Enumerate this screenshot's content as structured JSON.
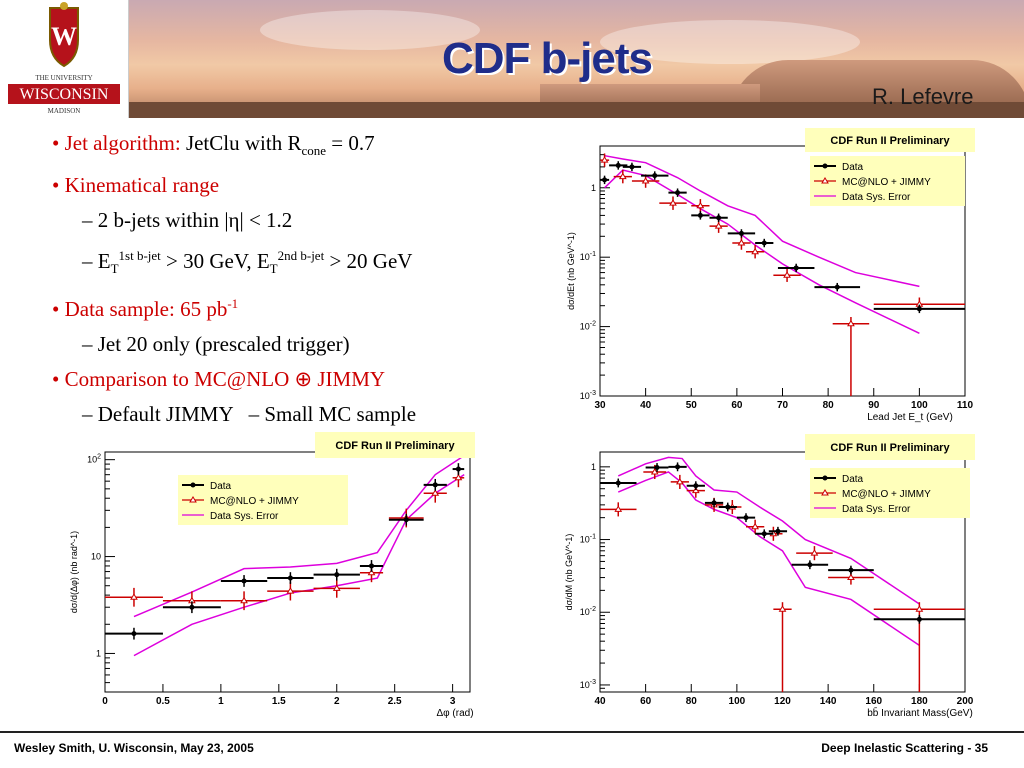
{
  "header": {
    "title": "CDF b-jets",
    "author": "R. Lefevre",
    "logo_text": {
      "line1": "THE UNIVERSITY",
      "line2": "WISCONSIN",
      "line3": "MADISON",
      "shield_letter": "W"
    }
  },
  "bullets": {
    "b1_label": "Jet algorithm:",
    "b1_text": "JetClu with R",
    "b1_sub": "cone",
    "b1_tail": "= 0.7",
    "b2": "Kinematical range",
    "b2a": "2 b-jets within |η| < 1.2",
    "b2b_E": "E",
    "b2b_T": "T",
    "b2b_sup1": "1st b-jet",
    "b2b_mid": " > 30 GeV, E",
    "b2b_sup2": "2nd b-jet",
    "b2b_tail": " > 20 GeV",
    "b3": "Data sample: 65 pb",
    "b3_sup": "-1",
    "b3a": "Jet 20 only (prescaled trigger)",
    "b4": "Comparison to MC@NLO ⊕ JIMMY",
    "b4a": "Default JIMMY",
    "b4b": "Small MC sample",
    "dash": "–",
    "dot": "•"
  },
  "legend": {
    "data": "Data",
    "mc": "MC@NLO + JIMMY",
    "sys": "Data Sys. Error"
  },
  "colors": {
    "data": "#000000",
    "mc": "#cc0000",
    "sys": "#dd00dd",
    "prelim_bg": "#ffffbb",
    "title": "#1f2d8a",
    "bullet_red": "#cc0000"
  },
  "chart_data": [
    {
      "id": "et",
      "type": "scatter",
      "title": "CDF Run II Preliminary",
      "xlabel": "Lead Jet E_t (GeV)",
      "ylabel": "dσ/dEt (nb GeV^-1)",
      "xlim": [
        30,
        110
      ],
      "ylim": [
        0.001,
        4
      ],
      "log_y": true,
      "xticks": [
        "30",
        "40",
        "50",
        "60",
        "70",
        "80",
        "90",
        "100",
        "110"
      ],
      "yticks": [
        {
          "v": 1,
          "label": "1"
        },
        {
          "v": 0.1,
          "label": "10^-1"
        },
        {
          "v": 0.01,
          "label": "10^-2"
        },
        {
          "v": 0.001,
          "label": "10^-3"
        }
      ],
      "data": {
        "x": [
          31,
          34,
          37,
          42,
          47,
          52,
          56,
          61,
          66,
          73,
          82,
          100
        ],
        "y": [
          1.3,
          2.1,
          2.0,
          1.5,
          0.85,
          0.4,
          0.37,
          0.22,
          0.16,
          0.07,
          0.037,
          0.018
        ],
        "xerr": [
          1,
          2,
          2,
          3,
          2,
          2,
          2,
          3,
          2,
          4,
          5,
          10
        ]
      },
      "mc": {
        "x": [
          31,
          35,
          40,
          46,
          52,
          56,
          61,
          64,
          71,
          85,
          100
        ],
        "y": [
          2.5,
          1.45,
          1.25,
          0.6,
          0.55,
          0.28,
          0.16,
          0.12,
          0.055,
          0.011,
          0.021
        ],
        "xerr": [
          1,
          2,
          3,
          3,
          2,
          2,
          2,
          2,
          3,
          4,
          10
        ]
      },
      "sys_upper": {
        "x": [
          31,
          35,
          40,
          47,
          52,
          58,
          64,
          70,
          78,
          86,
          100
        ],
        "y": [
          2.9,
          2.6,
          2.3,
          1.4,
          0.9,
          0.55,
          0.4,
          0.17,
          0.1,
          0.06,
          0.038
        ]
      },
      "sys_lower": {
        "x": [
          31,
          35,
          40,
          47,
          52,
          58,
          64,
          70,
          78,
          86,
          100
        ],
        "y": [
          1.0,
          1.8,
          1.5,
          0.8,
          0.5,
          0.3,
          0.15,
          0.08,
          0.04,
          0.022,
          0.008
        ]
      }
    },
    {
      "id": "dphi",
      "type": "scatter",
      "title": "CDF Run II Preliminary",
      "xlabel": "Δφ (rad)",
      "ylabel": "dσ/d(Δφ) (nb rad^-1)",
      "xlim": [
        0,
        3.15
      ],
      "ylim": [
        0.4,
        120
      ],
      "log_y": true,
      "xticks": [
        "0",
        "0.5",
        "1",
        "1.5",
        "2",
        "2.5",
        "3"
      ],
      "yticks": [
        {
          "v": 100,
          "label": "10^2"
        },
        {
          "v": 10,
          "label": "10"
        },
        {
          "v": 1,
          "label": "1"
        }
      ],
      "data": {
        "x": [
          0.25,
          0.75,
          1.2,
          1.6,
          2.0,
          2.3,
          2.6,
          2.85,
          3.05
        ],
        "y": [
          1.6,
          3.0,
          5.6,
          6.0,
          6.5,
          8.0,
          24,
          55,
          80
        ],
        "xerr": [
          0.25,
          0.25,
          0.2,
          0.2,
          0.2,
          0.1,
          0.15,
          0.1,
          0.05
        ]
      },
      "mc": {
        "x": [
          0.25,
          0.75,
          1.2,
          1.6,
          2.0,
          2.3,
          2.6,
          2.85,
          3.05
        ],
        "y": [
          3.8,
          3.5,
          3.5,
          4.4,
          4.7,
          6.8,
          25,
          45,
          65
        ],
        "xerr": [
          0.25,
          0.25,
          0.2,
          0.2,
          0.2,
          0.1,
          0.15,
          0.1,
          0.05
        ]
      },
      "sys_upper": {
        "x": [
          0.25,
          0.75,
          1.2,
          1.6,
          2.0,
          2.35,
          2.6,
          2.85,
          3.1
        ],
        "y": [
          2.4,
          4.3,
          7.5,
          7.8,
          8.5,
          11,
          30,
          70,
          110
        ]
      },
      "sys_lower": {
        "x": [
          0.25,
          0.75,
          1.2,
          1.6,
          2.0,
          2.35,
          2.6,
          2.85,
          3.1
        ],
        "y": [
          0.95,
          2.0,
          3.0,
          4.2,
          5.0,
          6.0,
          24,
          45,
          70
        ]
      }
    },
    {
      "id": "mass",
      "type": "scatter",
      "title": "CDF Run II Preliminary",
      "xlabel": "bb̄ Invariant Mass(GeV)",
      "ylabel": "dσ/dM (nb GeV^-1)",
      "xlim": [
        40,
        200
      ],
      "ylim": [
        0.0008,
        1.6
      ],
      "log_y": true,
      "xticks": [
        "40",
        "60",
        "80",
        "100",
        "120",
        "140",
        "160",
        "180",
        "200"
      ],
      "yticks": [
        {
          "v": 1,
          "label": "1"
        },
        {
          "v": 0.1,
          "label": "10^-1"
        },
        {
          "v": 0.01,
          "label": "10^-2"
        },
        {
          "v": 0.001,
          "label": "10^-3"
        }
      ],
      "data": {
        "x": [
          48,
          65,
          74,
          82,
          90,
          96,
          104,
          112,
          118,
          132,
          150,
          180
        ],
        "y": [
          0.6,
          0.98,
          1.0,
          0.55,
          0.32,
          0.28,
          0.2,
          0.12,
          0.13,
          0.045,
          0.038,
          0.008
        ],
        "xerr": [
          8,
          5,
          4,
          4,
          4,
          4,
          4,
          4,
          4,
          8,
          10,
          20
        ]
      },
      "mc": {
        "x": [
          48,
          64,
          75,
          82,
          90,
          98,
          108,
          116,
          120,
          134,
          150,
          180
        ],
        "y": [
          0.26,
          0.85,
          0.62,
          0.47,
          0.3,
          0.28,
          0.15,
          0.12,
          0.011,
          0.065,
          0.03,
          0.011
        ],
        "xerr": [
          8,
          5,
          4,
          4,
          4,
          4,
          4,
          4,
          4,
          8,
          10,
          20
        ]
      },
      "sys_upper": {
        "x": [
          48,
          60,
          70,
          76,
          82,
          90,
          100,
          110,
          120,
          130,
          150,
          180
        ],
        "y": [
          0.75,
          1.1,
          1.35,
          1.3,
          0.75,
          0.48,
          0.45,
          0.28,
          0.18,
          0.1,
          0.055,
          0.013
        ]
      },
      "sys_lower": {
        "x": [
          48,
          60,
          70,
          76,
          82,
          90,
          100,
          110,
          120,
          130,
          150,
          180
        ],
        "y": [
          0.45,
          0.65,
          0.85,
          0.6,
          0.35,
          0.26,
          0.2,
          0.11,
          0.07,
          0.022,
          0.015,
          0.0035
        ]
      }
    }
  ],
  "footer": {
    "left": "Wesley Smith, U. Wisconsin, May 23, 2005",
    "right": "Deep Inelastic Scattering - 35"
  }
}
